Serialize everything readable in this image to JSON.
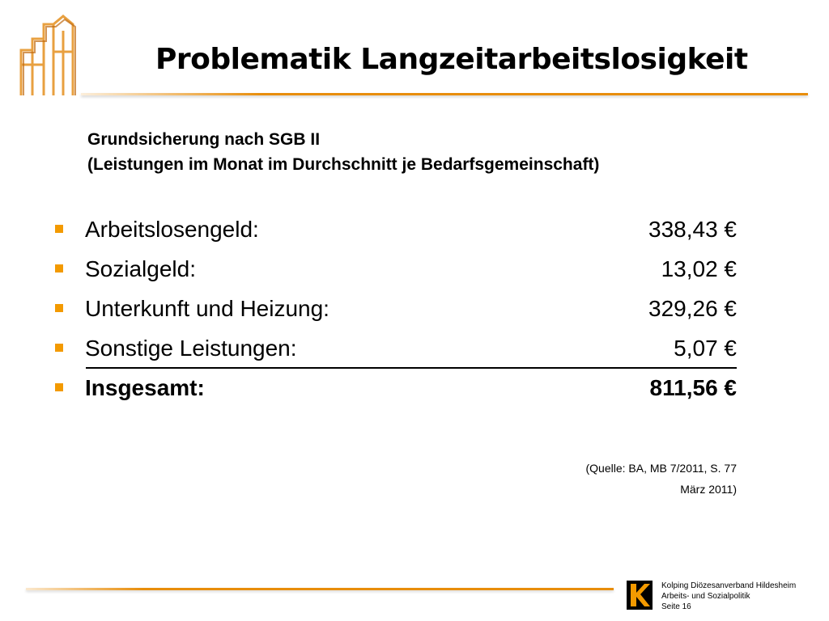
{
  "header": {
    "title": "Problematik Langzeitarbeitslosigkeit",
    "logo_icon": "building-house-icon"
  },
  "subtitle": {
    "line1": "Grundsicherung nach SGB II",
    "line2": "(Leistungen im Monat im Durchschnitt je Bedarfsgemeinschaft)"
  },
  "items": [
    {
      "label": "Arbeitslosengeld:",
      "value": "338,43 €"
    },
    {
      "label": "Sozialgeld:",
      "value": "13,02 €"
    },
    {
      "label": "Unterkunft und Heizung:",
      "value": "329,26 €"
    },
    {
      "label": "Sonstige Leistungen:",
      "value": "5,07 €"
    }
  ],
  "total": {
    "label": "Insgesamt:",
    "value": "811,56 €"
  },
  "source": {
    "line1": "(Quelle: BA, MB 7/2011, S. 77",
    "line2": "März 2011)"
  },
  "footer": {
    "logo_icon": "kolping-k-logo-icon",
    "line1": "Kolping Diözesanverband Hildesheim",
    "line2": "Arbeits- und Sozialpolitik",
    "line3": "Seite 16"
  },
  "colors": {
    "accent_orange": "#e88d0a",
    "bullet_orange": "#f39a00",
    "text": "#000000"
  }
}
